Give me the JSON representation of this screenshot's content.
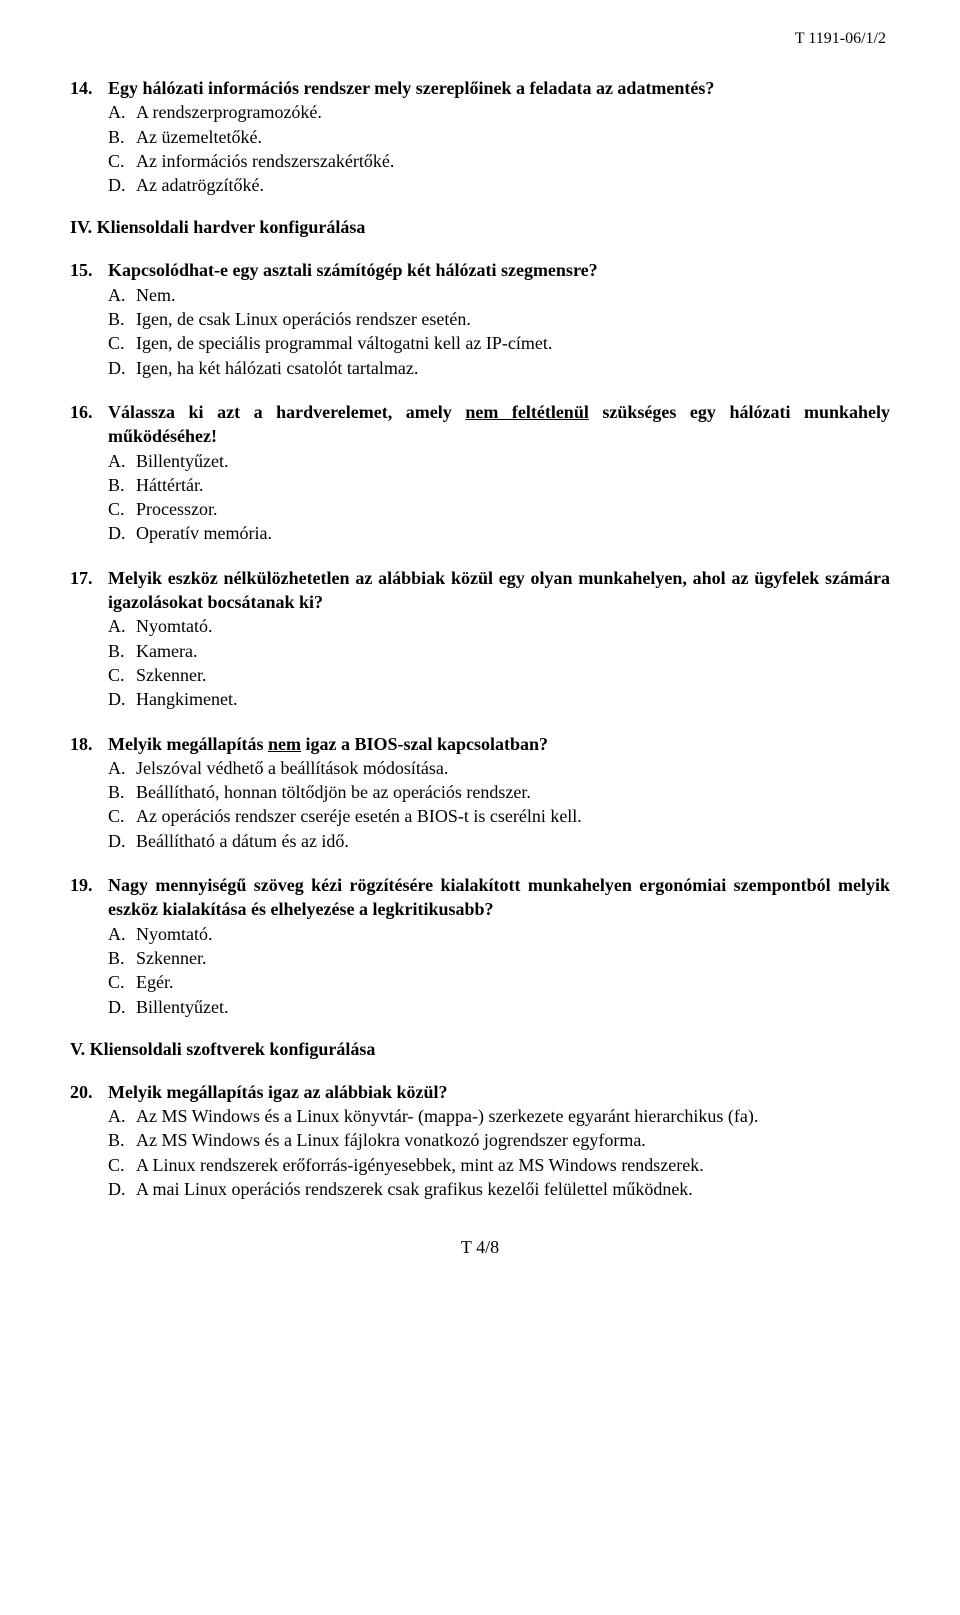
{
  "header_code": "T 1191-06/1/2",
  "footer": "T 4/8",
  "section4_heading": "IV. Kliensoldali hardver konfigurálása",
  "section5_heading": "V. Kliensoldali szoftverek konfigurálása",
  "q14": {
    "num": "14.",
    "text": "Egy hálózati információs rendszer mely szereplőinek a feladata az adatmentés?",
    "A": "A rendszerprogramozóké.",
    "B": "Az üzemeltetőké.",
    "C": "Az információs rendszerszakértőké.",
    "D": "Az adatrögzítőké."
  },
  "q15": {
    "num": "15.",
    "text": "Kapcsolódhat-e egy asztali számítógép két hálózati szegmensre?",
    "A": "Nem.",
    "B": "Igen, de csak Linux operációs rendszer esetén.",
    "C": "Igen, de speciális programmal váltogatni kell az IP-címet.",
    "D": "Igen, ha két hálózati csatolót tartalmaz."
  },
  "q16": {
    "num": "16.",
    "text_pre": "Válassza ki azt a hardverelemet, amely ",
    "text_underlined": "nem feltétlenül",
    "text_post": " szükséges egy hálózati munkahely működéséhez!",
    "A": "Billentyűzet.",
    "B": "Háttértár.",
    "C": "Processzor.",
    "D": "Operatív memória."
  },
  "q17": {
    "num": "17.",
    "text": "Melyik eszköz nélkülözhetetlen az alábbiak közül egy olyan munkahelyen, ahol az ügyfelek számára igazolásokat bocsátanak ki?",
    "A": "Nyomtató.",
    "B": "Kamera.",
    "C": "Szkenner.",
    "D": "Hangkimenet."
  },
  "q18": {
    "num": "18.",
    "text_pre": "Melyik megállapítás ",
    "text_underlined": "nem",
    "text_post": " igaz a BIOS-szal kapcsolatban?",
    "A": "Jelszóval védhető a beállítások módosítása.",
    "B": "Beállítható, honnan töltődjön be az operációs rendszer.",
    "C": "Az operációs rendszer cseréje esetén a BIOS-t is cserélni kell.",
    "D": "Beállítható a dátum és az idő."
  },
  "q19": {
    "num": "19.",
    "text": "Nagy mennyiségű szöveg kézi rögzítésére kialakított munkahelyen ergonómiai szempontból melyik eszköz kialakítása és elhelyezése a legkritikusabb?",
    "A": "Nyomtató.",
    "B": "Szkenner.",
    "C": "Egér.",
    "D": "Billentyűzet."
  },
  "q20": {
    "num": "20.",
    "text": "Melyik megállapítás igaz az alábbiak közül?",
    "A": "Az MS Windows és a Linux könyvtár- (mappa-) szerkezete egyaránt hierarchikus (fa).",
    "B": "Az MS Windows és a Linux fájlokra vonatkozó jogrendszer egyforma.",
    "C": "A Linux rendszerek erőforrás-igényesebbek, mint az MS Windows rendszerek.",
    "D": "A mai Linux operációs rendszerek csak grafikus kezelői felülettel működnek."
  },
  "labels": {
    "A": "A.",
    "B": "B.",
    "C": "C.",
    "D": "D."
  }
}
